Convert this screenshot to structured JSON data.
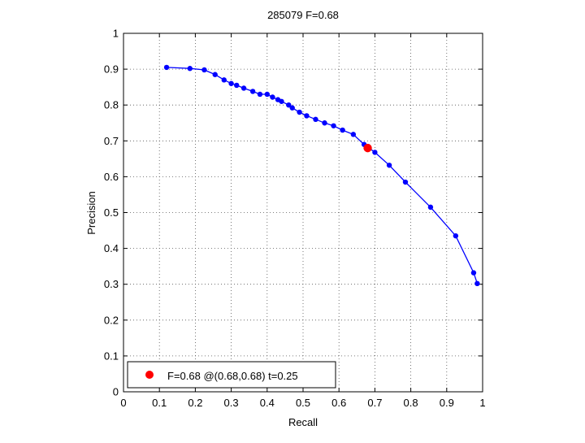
{
  "chart_data": {
    "type": "line",
    "title": "285079 F=0.68",
    "xlabel": "Recall",
    "ylabel": "Precision",
    "xlim": [
      0,
      1
    ],
    "ylim": [
      0,
      1
    ],
    "grid": true,
    "legend_placement": "bottom-left",
    "xticks": [
      "0",
      "0.1",
      "0.2",
      "0.3",
      "0.4",
      "0.5",
      "0.6",
      "0.7",
      "0.8",
      "0.9",
      "1"
    ],
    "yticks": [
      "0",
      "0.1",
      "0.2",
      "0.3",
      "0.4",
      "0.5",
      "0.6",
      "0.7",
      "0.8",
      "0.9",
      "1"
    ],
    "series": [
      {
        "color": "#0000ff",
        "marker": "dot",
        "x": [
          0.12,
          0.185,
          0.225,
          0.255,
          0.28,
          0.3,
          0.315,
          0.335,
          0.36,
          0.38,
          0.4,
          0.415,
          0.43,
          0.44,
          0.46,
          0.47,
          0.49,
          0.51,
          0.535,
          0.56,
          0.585,
          0.61,
          0.64,
          0.67,
          0.7,
          0.74,
          0.785,
          0.855,
          0.925,
          0.975,
          0.985
        ],
        "y": [
          0.905,
          0.902,
          0.898,
          0.885,
          0.87,
          0.86,
          0.855,
          0.847,
          0.838,
          0.83,
          0.83,
          0.822,
          0.815,
          0.81,
          0.8,
          0.792,
          0.78,
          0.77,
          0.76,
          0.75,
          0.742,
          0.73,
          0.718,
          0.69,
          0.668,
          0.632,
          0.585,
          0.515,
          0.435,
          0.332,
          0.302
        ]
      }
    ],
    "best_point": {
      "x": 0.68,
      "y": 0.68,
      "color": "#ff0000"
    },
    "legend": {
      "label": "F=0.68 @(0.68,0.68) t=0.25",
      "color": "#ff0000"
    }
  }
}
